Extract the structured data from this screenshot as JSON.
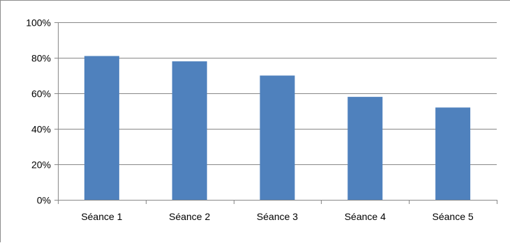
{
  "chart_data": {
    "type": "bar",
    "categories": [
      "Séance 1",
      "Séance 2",
      "Séance 3",
      "Séance 4",
      "Séance 5"
    ],
    "values": [
      81,
      78,
      70,
      58,
      52
    ],
    "ylim": [
      0,
      100
    ],
    "yticks": [
      "0%",
      "20%",
      "40%",
      "60%",
      "80%",
      "100%"
    ],
    "y_tick_values": [
      0,
      20,
      40,
      60,
      80,
      100
    ],
    "title": "",
    "xlabel": "",
    "ylabel": "",
    "grid": true,
    "legend": "none",
    "bar_color": "#4F81BD",
    "gridline_color": "#878787"
  }
}
